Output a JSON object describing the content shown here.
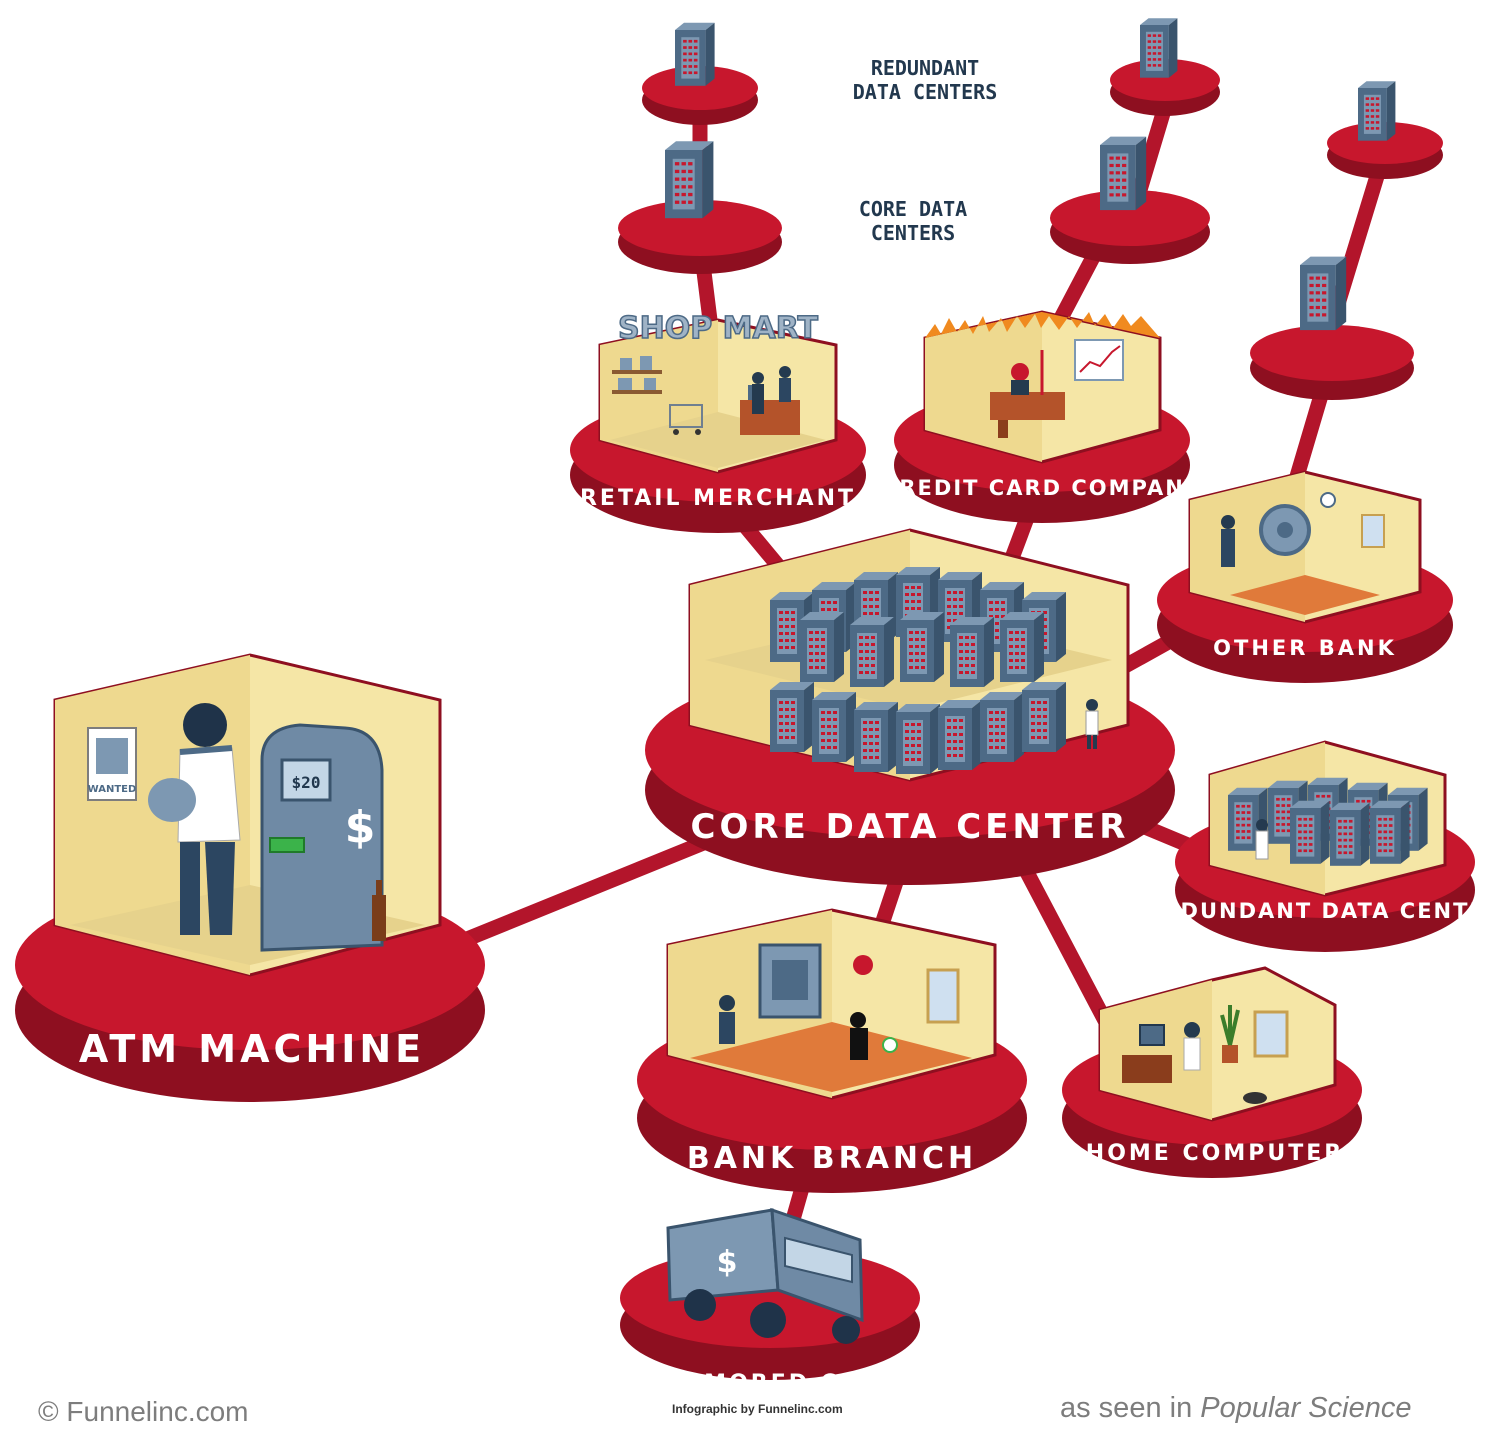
{
  "colors": {
    "disc_red": "#c7172d",
    "disc_dark": "#8e0f20",
    "disc_top": "#d8283d",
    "room_wall": "#f5e6a6",
    "room_wall_dark": "#e6d28c",
    "room_floor": "#ead89a",
    "server_blue": "#4d6a86",
    "server_light": "#7d98b2",
    "server_red": "#c7172d",
    "navy_text": "#22384e",
    "connector": "#b3152b"
  },
  "labels": {
    "redundant_data_centers_line1": "REDUNDANT",
    "redundant_data_centers_line2": "DATA CENTERS",
    "core_data_centers_line1": "CORE DATA",
    "core_data_centers_line2": "CENTERS",
    "retail_merchant": "RETAIL MERCHANT",
    "credit_card_company": "CREDIT CARD COMPANY",
    "other_bank": "OTHER BANK",
    "core_data_center": "CORE DATA CENTER",
    "redundant_data_center": "REDUNDANT DATA CENTER",
    "atm_machine": "ATM MACHINE",
    "bank_branch": "BANK BRANCH",
    "home_computer": "HOME COMPUTER",
    "armored_car": "ARMORED CAR",
    "shop_mart_sign": "SHOP MART",
    "wanted_poster": "WANTED",
    "atm_screen": "$20",
    "dollar_sign": "$"
  },
  "footer": {
    "copyright": "© Funnelinc.com",
    "seen_prefix": "as seen in ",
    "seen_publication": "Popular Science",
    "credit": "Infographic by Funnelinc.com"
  }
}
